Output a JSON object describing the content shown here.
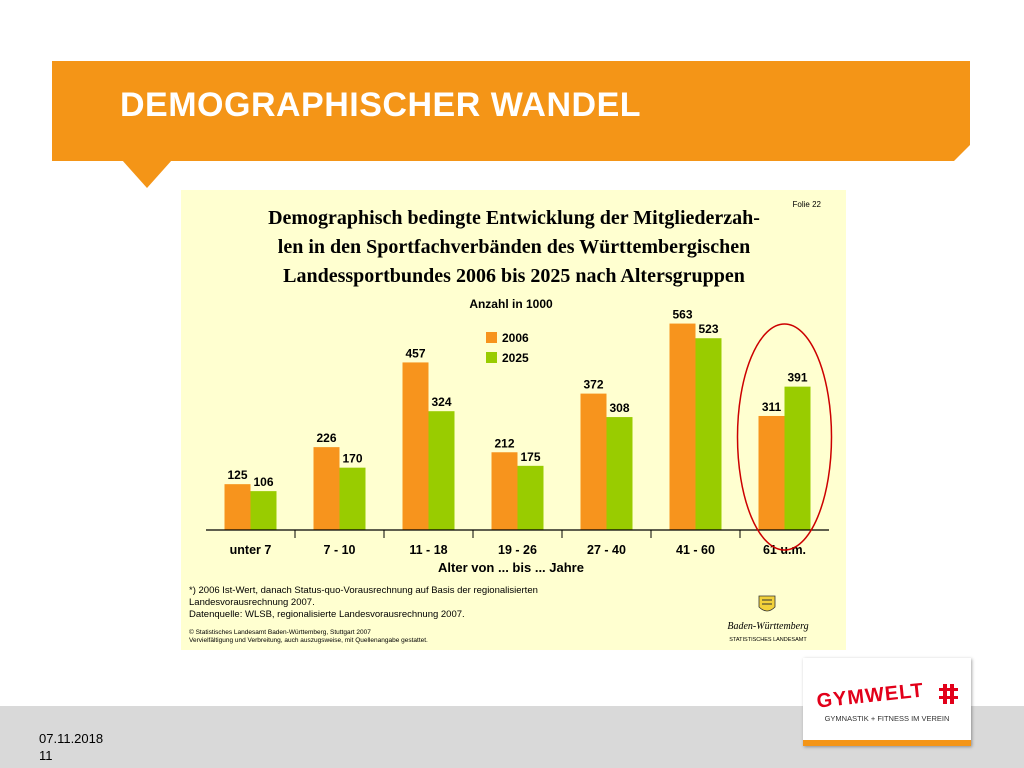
{
  "slide": {
    "title": "DEMOGRAPHISCHER WANDEL",
    "date": "07.11.2018",
    "page": "11"
  },
  "chart_data": {
    "type": "bar",
    "slide_label": "Folie 22",
    "title_lines": [
      "Demographisch bedingte Entwicklung der Mitgliederzah-",
      "len in den Sportfachverbänden des Württembergischen",
      "Landessportbundes 2006 bis 2025 nach Altersgruppen"
    ],
    "subtitle": "Anzahl in 1000",
    "xlabel": "Alter von ... bis ... Jahre",
    "ylabel": "",
    "categories": [
      "unter 7",
      "7 - 10",
      "11 - 18",
      "19 - 26",
      "27 - 40",
      "41 - 60",
      "61 u.m."
    ],
    "ylim": [
      0,
      600
    ],
    "series": [
      {
        "name": "2006",
        "color": "#f7941d",
        "values": [
          125,
          226,
          457,
          212,
          372,
          563,
          311
        ]
      },
      {
        "name": "2025",
        "color": "#99cc00",
        "values": [
          106,
          170,
          324,
          175,
          308,
          523,
          391
        ]
      }
    ],
    "legend_position": "top-center",
    "grid": false,
    "highlight": {
      "category": "61 u.m.",
      "color": "#cc0000"
    },
    "notes": [
      "*) 2006 Ist-Wert, danach Status-quo-Vorausrechnung auf Basis der regionalisierten",
      "Landesvorausrechnung 2007.",
      "Datenquelle: WLSB, regionalisierte Landesvorausrechnung 2007."
    ],
    "copyright": [
      "© Statistisches Landesamt Baden-Württemberg, Stuttgart 2007",
      "Vervielfältigung und Verbreitung, auch auszugsweise, mit Quellenangabe gestattet."
    ],
    "source_logo": {
      "name": "Baden-Württemberg",
      "sub": "STATISTISCHES LANDESAMT",
      "icon": "coat-of-arms-icon"
    }
  },
  "brand": {
    "logo_text": "GYMWELT",
    "tagline": "GYMNASTIK + FITNESS IM VEREIN",
    "icon": "dtb-logo-icon",
    "accent": "#f49517",
    "logo_red": "#e2001a"
  }
}
